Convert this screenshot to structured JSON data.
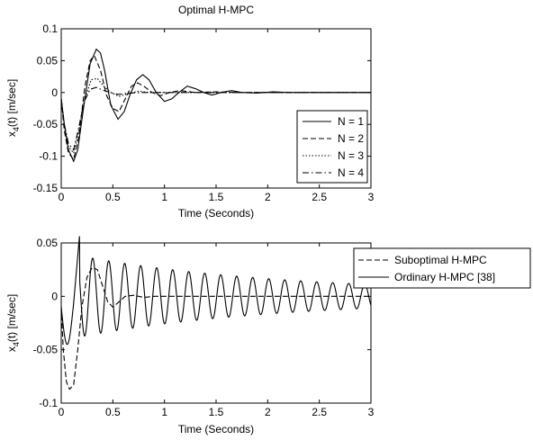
{
  "chart_data": [
    {
      "type": "line",
      "title": "Optimal H-MPC",
      "xlabel": "Time (Seconds)",
      "ylabel_main": "x",
      "ylabel_sub": "4",
      "ylabel_rest": "(t) [m/sec]",
      "xlim": [
        0,
        3
      ],
      "ylim": [
        -0.15,
        0.1
      ],
      "x_ticks": [
        0,
        0.5,
        1,
        1.5,
        2,
        2.5,
        3
      ],
      "x_tick_labels": [
        "0",
        "0.5",
        "1",
        "1.5",
        "2",
        "2.5",
        "3"
      ],
      "y_ticks": [
        -0.15,
        -0.1,
        -0.05,
        0,
        0.05,
        0.1
      ],
      "y_tick_labels": [
        "-0.15",
        "-0.1",
        "-0.05",
        "0",
        "0.05",
        "0.1"
      ],
      "grid": false,
      "legend_position": "bottom-right",
      "series": [
        {
          "name": "N = 1",
          "dash": "solid",
          "x": [
            0,
            0.03,
            0.07,
            0.12,
            0.16,
            0.22,
            0.28,
            0.34,
            0.38,
            0.42,
            0.48,
            0.55,
            0.61,
            0.67,
            0.73,
            0.79,
            0.85,
            0.92,
            1.0,
            1.07,
            1.14,
            1.22,
            1.3,
            1.38,
            1.46,
            1.55,
            1.65,
            1.75,
            1.9,
            2.05,
            2.2,
            2.4,
            2.6,
            2.8,
            3.0
          ],
          "y": [
            -0.01,
            -0.05,
            -0.09,
            -0.108,
            -0.09,
            -0.02,
            0.045,
            0.068,
            0.062,
            0.035,
            -0.02,
            -0.042,
            -0.03,
            -0.002,
            0.02,
            0.028,
            0.02,
            0.0,
            -0.014,
            -0.01,
            0.0,
            0.01,
            0.006,
            0.0,
            -0.004,
            0.0,
            0.003,
            0.0,
            -0.001,
            0.001,
            0.0,
            0.0,
            0.0,
            0.0,
            0.0
          ]
        },
        {
          "name": "N = 2",
          "dash": "dashed",
          "x": [
            0,
            0.03,
            0.07,
            0.12,
            0.17,
            0.23,
            0.28,
            0.32,
            0.38,
            0.44,
            0.5,
            0.56,
            0.62,
            0.68,
            0.74,
            0.8,
            0.88,
            0.96,
            1.05,
            1.15,
            1.3,
            1.5,
            1.7,
            2.0,
            2.5,
            3.0
          ],
          "y": [
            -0.01,
            -0.06,
            -0.095,
            -0.105,
            -0.07,
            0.01,
            0.05,
            0.058,
            0.035,
            -0.005,
            -0.025,
            -0.03,
            -0.01,
            0.01,
            0.015,
            0.01,
            0.0,
            -0.005,
            0.0,
            0.003,
            0.0,
            0.001,
            0.0,
            0.0,
            0.0,
            0.0
          ]
        },
        {
          "name": "N = 3",
          "dash": "dotted",
          "x": [
            0,
            0.03,
            0.07,
            0.12,
            0.17,
            0.23,
            0.29,
            0.35,
            0.41,
            0.48,
            0.56,
            0.65,
            0.75,
            0.85,
            1.0,
            1.2,
            1.5,
            2.0,
            2.5,
            3.0
          ],
          "y": [
            -0.01,
            -0.05,
            -0.085,
            -0.095,
            -0.06,
            -0.01,
            0.02,
            0.022,
            0.01,
            0.0,
            -0.006,
            -0.002,
            0.002,
            0.0,
            0.0,
            0.0,
            0.0,
            0.0,
            0.0,
            0.0
          ]
        },
        {
          "name": "N = 4",
          "dash": "dashdot",
          "x": [
            0,
            0.03,
            0.07,
            0.12,
            0.17,
            0.22,
            0.28,
            0.34,
            0.4,
            0.47,
            0.55,
            0.65,
            0.8,
            1.0,
            1.5,
            2.0,
            2.5,
            3.0
          ],
          "y": [
            -0.01,
            -0.05,
            -0.08,
            -0.09,
            -0.055,
            -0.015,
            0.005,
            0.008,
            0.004,
            0.0,
            -0.003,
            -0.001,
            0.0,
            0.0,
            0.0,
            0.0,
            0.0,
            0.0
          ]
        }
      ]
    },
    {
      "type": "line",
      "title": "",
      "xlabel": "Time (Seconds)",
      "ylabel_main": "x",
      "ylabel_sub": "4",
      "ylabel_rest": "(t) [m/sec]",
      "xlim": [
        0,
        3
      ],
      "ylim": [
        -0.1,
        0.05
      ],
      "x_ticks": [
        0,
        0.5,
        1,
        1.5,
        2,
        2.5,
        3
      ],
      "x_tick_labels": [
        "0",
        "0.5",
        "1",
        "1.5",
        "2",
        "2.5",
        "3"
      ],
      "y_ticks": [
        -0.1,
        -0.05,
        0,
        0.05
      ],
      "y_tick_labels": [
        "-0.1",
        "-0.05",
        "0",
        "0.05"
      ],
      "grid": false,
      "legend_position": "top-right",
      "series": [
        {
          "name": "Suboptimal H-MPC",
          "dash": "dashed",
          "x": [
            0,
            0.02,
            0.05,
            0.08,
            0.12,
            0.16,
            0.2,
            0.25,
            0.3,
            0.35,
            0.4,
            0.45,
            0.5,
            0.55,
            0.62,
            0.7,
            0.8,
            0.9,
            1.0,
            1.2,
            1.5,
            2.0,
            2.5,
            3.0
          ],
          "y": [
            -0.01,
            -0.05,
            -0.08,
            -0.087,
            -0.083,
            -0.05,
            -0.01,
            0.018,
            0.027,
            0.025,
            0.01,
            -0.005,
            -0.01,
            -0.006,
            0.0,
            0.001,
            -0.001,
            0.0,
            0.0,
            0.0,
            0.0,
            0.0,
            0.0,
            0.0
          ]
        }
      ],
      "oscillation": {
        "name": "Ordinary H-MPC [38]",
        "dash": "solid",
        "period": 0.155,
        "amp0": 0.035,
        "decay": 0.52,
        "onset": 0.18
      }
    }
  ]
}
